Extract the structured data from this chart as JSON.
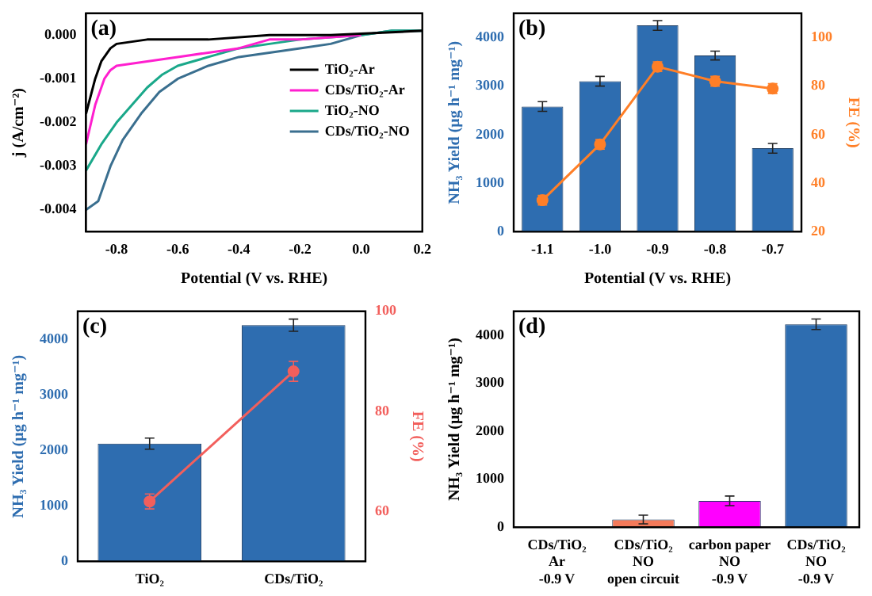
{
  "chart_data": [
    {
      "type": "line",
      "title": "(a)",
      "xlabel": "Potential (V vs. RHE)",
      "ylabel": "j (A/cm⁻²)",
      "xlim": [
        -0.9,
        0.2
      ],
      "xticks": [
        -0.8,
        -0.6,
        -0.4,
        -0.2,
        {
          "value": 0,
          "label": "0.0"
        },
        0.2
      ],
      "ylim": [
        -0.0045,
        0.0005
      ],
      "yticks": [
        {
          "value": 0,
          "label": "0.000"
        },
        {
          "value": -0.001,
          "label": "-0.001"
        },
        {
          "value": -0.002,
          "label": "-0.002"
        },
        {
          "value": -0.003,
          "label": "-0.003"
        },
        {
          "value": -0.004,
          "label": "-0.004"
        }
      ],
      "legend": "right",
      "marker": "none",
      "line_style": "solid",
      "series": [
        {
          "name": "TiO₂-Ar",
          "color": "#000000",
          "x": [
            -0.9,
            -0.87,
            -0.85,
            -0.82,
            -0.8,
            -0.7,
            -0.5,
            -0.3,
            -0.1,
            0.2
          ],
          "values": [
            -0.0018,
            -0.001,
            -0.0006,
            -0.0003,
            -0.0002,
            -0.0001,
            -0.0001,
            0,
            0,
            0.0001
          ]
        },
        {
          "name": "CDs/TiO₂-Ar",
          "color": "#ff1fcf",
          "x": [
            -0.9,
            -0.87,
            -0.84,
            -0.82,
            -0.8,
            -0.7,
            -0.6,
            -0.5,
            -0.4,
            -0.3,
            -0.2,
            0
          ],
          "values": [
            -0.0025,
            -0.0016,
            -0.001,
            -0.0008,
            -0.0007,
            -0.0006,
            -0.0005,
            -0.0004,
            -0.0003,
            -0.0001,
            -0.0001,
            0
          ]
        },
        {
          "name": "TiO₂-NO",
          "color": "#1aa88a",
          "x": [
            -0.9,
            -0.85,
            -0.8,
            -0.75,
            -0.7,
            -0.65,
            -0.6,
            -0.5,
            -0.4,
            -0.3,
            -0.2,
            0,
            0.1,
            0.2
          ],
          "values": [
            -0.0031,
            -0.0025,
            -0.002,
            -0.0016,
            -0.0012,
            -0.0009,
            -0.0007,
            -0.0005,
            -0.0003,
            -0.0002,
            -0.0001,
            0,
            0.0001,
            0.0001
          ]
        },
        {
          "name": "CDs/TiO₂-NO",
          "color": "#3a6f8f",
          "x": [
            -0.9,
            -0.86,
            -0.82,
            -0.78,
            -0.72,
            -0.66,
            -0.6,
            -0.5,
            -0.4,
            -0.3,
            -0.2,
            -0.1,
            0,
            0.1,
            0.2
          ],
          "values": [
            -0.004,
            -0.0038,
            -0.003,
            -0.0024,
            -0.0018,
            -0.0013,
            -0.001,
            -0.0007,
            -0.0005,
            -0.0004,
            -0.0003,
            -0.0002,
            0,
            0.0001,
            0.0001
          ]
        }
      ]
    },
    {
      "type": "bar",
      "title": "(b)",
      "xlabel": "Potential (V vs. RHE)",
      "ylabel": "NH₃ Yield (μg h⁻¹ mg⁻¹)",
      "y2label": "FE (%)",
      "categories": [
        "-1.1",
        "-1.0",
        "-0.9",
        "-0.8",
        "-0.7"
      ],
      "ylim": [
        0,
        4500
      ],
      "yticks": [
        0,
        1000,
        2000,
        3000,
        4000
      ],
      "y2lim": [
        20,
        110
      ],
      "y2ticks": [
        20,
        40,
        60,
        80,
        100
      ],
      "marker": "circle",
      "series": [
        {
          "type": "bar",
          "color": "#2e6db0",
          "values": [
            2580,
            3100,
            4250,
            3630,
            1720
          ],
          "errors": [
            100,
            100,
            100,
            90,
            100
          ]
        },
        {
          "type": "line",
          "axis": "y2",
          "color": "#ff7f27",
          "values": [
            33,
            56,
            88,
            82,
            79
          ],
          "errors": [
            2,
            2,
            2,
            2,
            2
          ]
        }
      ]
    },
    {
      "type": "bar",
      "title": "(c)",
      "ylabel": "NH₃ Yield (μg h⁻¹ mg⁻¹)",
      "y2label": "FE (%)",
      "categories": [
        "TiO₂",
        "CDs/TiO₂"
      ],
      "ylim": [
        0,
        4500
      ],
      "yticks": [
        0,
        1000,
        2000,
        3000,
        4000
      ],
      "y2lim": [
        50,
        100
      ],
      "y2ticks": [
        60,
        80,
        100
      ],
      "marker": "circle",
      "series": [
        {
          "type": "bar",
          "color": "#2e6db0",
          "values": [
            2120,
            4250
          ],
          "errors": [
            100,
            110
          ]
        },
        {
          "type": "line",
          "axis": "y2",
          "color": "#f25f5c",
          "values": [
            62,
            88
          ],
          "errors": [
            1.5,
            2
          ]
        }
      ]
    },
    {
      "type": "bar",
      "title": "(d)",
      "ylabel": "NH₃ Yield (μg h⁻¹ mg⁻¹)",
      "categories": [
        "CDs/TiO₂\nAr\n-0.9 V",
        "CDs/TiO₂\nNO\nopen circuit",
        "carbon paper\nNO\n-0.9 V",
        "CDs/TiO₂\nNO\n-0.9 V"
      ],
      "ylim": [
        0,
        4500
      ],
      "yticks": [
        0,
        1000,
        2000,
        3000,
        4000
      ],
      "series": [
        {
          "type": "bar",
          "colors": [
            "#f47a5a",
            "#f47a5a",
            "#ff00ff",
            "#2e6db0"
          ],
          "values": [
            0,
            160,
            550,
            4230
          ],
          "errors": [
            null,
            90,
            100,
            110
          ]
        }
      ]
    }
  ]
}
